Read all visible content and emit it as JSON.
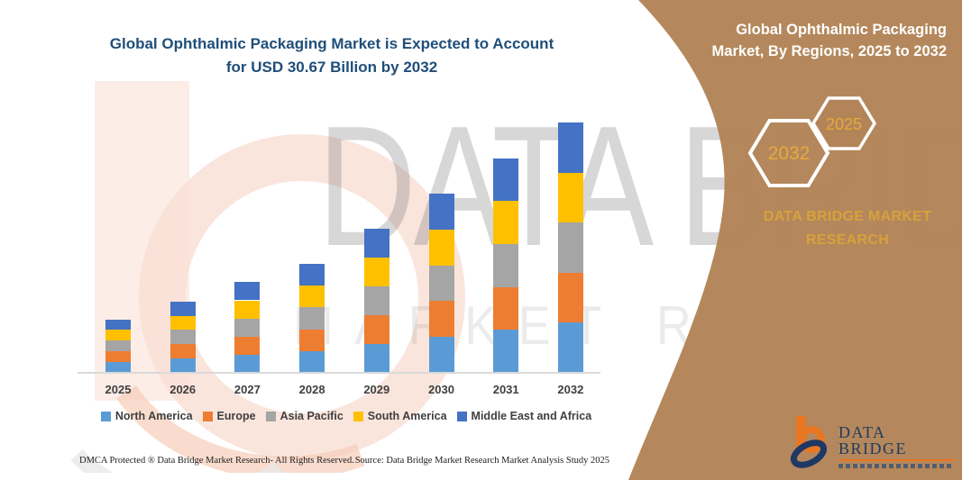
{
  "header": {
    "title_line1": "Global Ophthalmic Packaging Market is Expected to Account",
    "title_line2": "for USD 30.67 Billion by 2032"
  },
  "chart_data": {
    "type": "bar",
    "stacked": true,
    "title": "Global Ophthalmic Packaging Market is Expected to Account for USD 30.67 Billion by 2032",
    "unit": "USD Billion",
    "categories": [
      "2025",
      "2026",
      "2027",
      "2028",
      "2029",
      "2030",
      "2031",
      "2032"
    ],
    "series": [
      {
        "name": "North America",
        "color": "#5B9BD5",
        "values": [
          1.31,
          1.75,
          2.22,
          2.67,
          3.52,
          4.39,
          5.26,
          6.13
        ]
      },
      {
        "name": "Europe",
        "color": "#ED7D31",
        "values": [
          1.31,
          1.75,
          2.22,
          2.67,
          3.52,
          4.39,
          5.26,
          6.13
        ]
      },
      {
        "name": "Asia Pacific",
        "color": "#A5A5A5",
        "values": [
          1.31,
          1.75,
          2.22,
          2.67,
          3.52,
          4.39,
          5.26,
          6.13
        ]
      },
      {
        "name": "South America",
        "color": "#FFC000",
        "values": [
          1.31,
          1.75,
          2.22,
          2.67,
          3.52,
          4.39,
          5.26,
          6.13
        ]
      },
      {
        "name": "Middle East and Africa",
        "color": "#4472C4",
        "values": [
          1.31,
          1.75,
          2.22,
          2.67,
          3.52,
          4.39,
          5.26,
          6.13
        ]
      }
    ],
    "totals": [
      6.55,
      8.77,
      11.1,
      13.35,
      17.6,
      21.95,
      26.3,
      30.67
    ],
    "ylim": [
      0,
      32
    ],
    "grid": false,
    "legend_position": "bottom"
  },
  "panel": {
    "title_line1": "Global Ophthalmic Packaging",
    "title_line2": "Market, By Regions, 2025 to 2032",
    "hex_large_label": "2032",
    "hex_small_label": "2025",
    "brand_line1": "DATA BRIDGE MARKET",
    "brand_line2": "RESEARCH",
    "panel_color": "#B28457",
    "accent_gold": "#D7A13A"
  },
  "watermark": {
    "text_primary": "DATA BRIDGE",
    "text_secondary": "MARKET RESEARCH"
  },
  "logo": {
    "wordmark": "DATA BRIDGE",
    "orange": "#E87722",
    "navy": "#1F3864"
  },
  "footer": {
    "left": "DMCA Protected ® Data Bridge Market Research-  All Rights Reserved.",
    "right": "Source: Data Bridge Market Research  Market Analysis Study 2025"
  }
}
